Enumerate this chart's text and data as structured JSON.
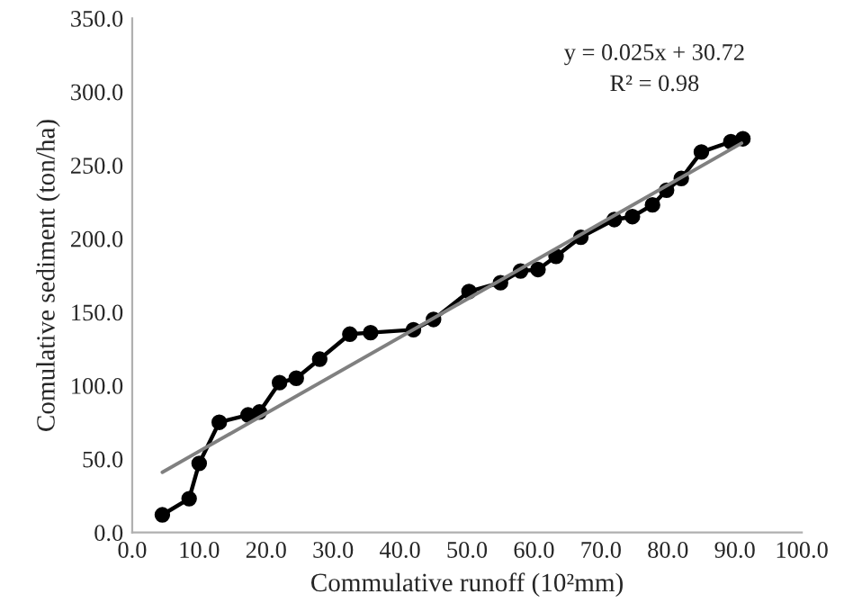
{
  "chart_data": {
    "type": "line",
    "xlabel": "Commulative runoff (10²mm)",
    "ylabel": "Comulative sediment (ton/ha)",
    "annotations": [
      "y = 0.025x + 30.72",
      "R² = 0.98"
    ],
    "series": [
      {
        "color": "#000000",
        "marker": "circle",
        "x": [
          4.5,
          8.5,
          10,
          13,
          17.3,
          19,
          22,
          24.5,
          28,
          32.5,
          35.6,
          42,
          45,
          50.3,
          55,
          58,
          60.6,
          63.3,
          67,
          72,
          74.7,
          77.7,
          79.8,
          82,
          85,
          89.4,
          91.2
        ],
        "values": [
          12,
          23,
          47,
          75,
          80,
          82,
          102,
          105,
          118,
          135,
          136,
          138,
          145,
          164,
          170,
          178,
          179,
          188,
          201,
          213,
          215,
          223,
          233,
          241,
          259,
          266,
          268
        ]
      },
      {
        "color": "#808080",
        "marker": "none",
        "x": [
          4.5,
          91
        ],
        "values": [
          41,
          265
        ]
      }
    ],
    "xlim": [
      0,
      100
    ],
    "ylim": [
      0,
      350
    ],
    "xticks": [
      {
        "value": 0,
        "label": "0.0"
      },
      {
        "value": 10,
        "label": "10.0"
      },
      {
        "value": 20,
        "label": "20.0"
      },
      {
        "value": 30,
        "label": "30.0"
      },
      {
        "value": 40,
        "label": "40.0"
      },
      {
        "value": 50,
        "label": "50.0"
      },
      {
        "value": 60,
        "label": "60.0"
      },
      {
        "value": 70,
        "label": "70.0"
      },
      {
        "value": 80,
        "label": "80.0"
      },
      {
        "value": 90,
        "label": "90.0"
      },
      {
        "value": 100,
        "label": "100.0"
      }
    ],
    "yticks": [
      {
        "value": 0,
        "label": "0.0"
      },
      {
        "value": 50,
        "label": "50.0"
      },
      {
        "value": 100,
        "label": "100.0"
      },
      {
        "value": 150,
        "label": "150.0"
      },
      {
        "value": 200,
        "label": "200.0"
      },
      {
        "value": 250,
        "label": "250.0"
      },
      {
        "value": 300,
        "label": "300.0"
      },
      {
        "value": 350,
        "label": "350.0"
      }
    ],
    "grid": false,
    "legend": false
  }
}
